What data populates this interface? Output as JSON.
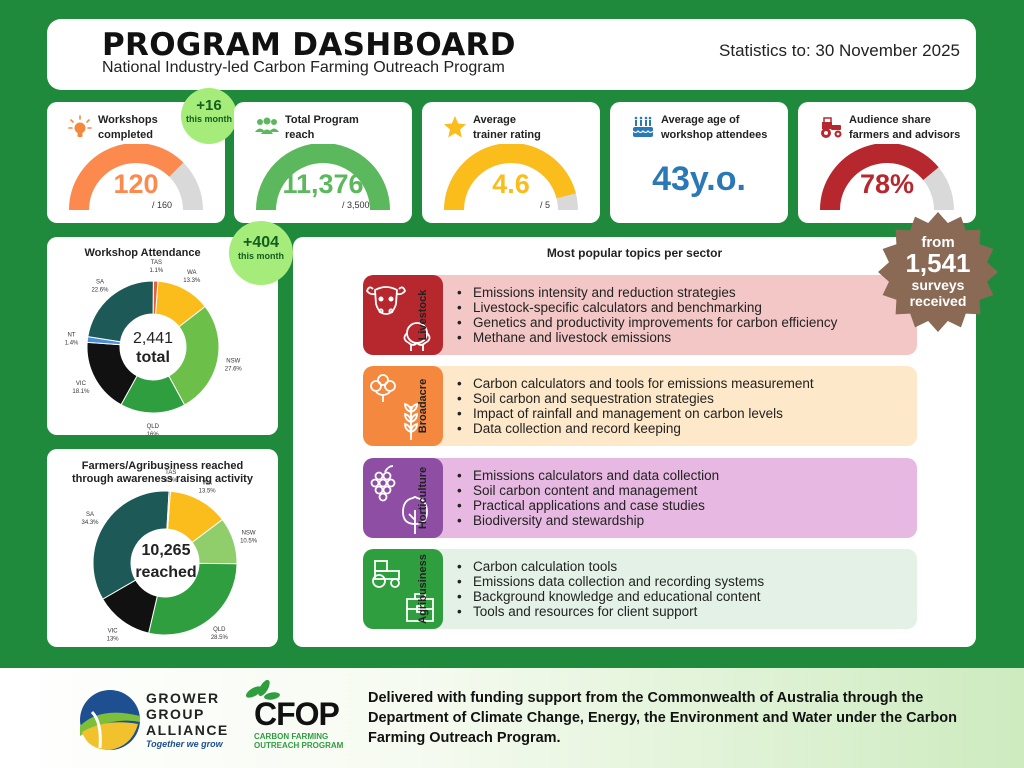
{
  "header": {
    "title": "PROGRAM DASHBOARD",
    "subtitle": "National Industry-led Carbon Farming Outreach Program",
    "stats_date": "Statistics to: 30 November 2025"
  },
  "kpis": {
    "workshops": {
      "label_line1": "Workshops",
      "label_line2": "completed",
      "value": "120",
      "max": "/ 160",
      "fraction": 0.75,
      "color": "#fc8a4f",
      "badge_value": "+16",
      "badge_text": "this month"
    },
    "reach": {
      "label_line1": "Total Program",
      "label_line2": "reach",
      "value": "11,376",
      "max": "/ 3,500",
      "fraction": 1.0,
      "color": "#5cb85c"
    },
    "rating": {
      "label_line1": "Average",
      "label_line2": "trainer rating",
      "value": "4.6",
      "max": "/ 5",
      "fraction": 0.92,
      "color": "#fbbd1c"
    },
    "age": {
      "label_line1": "Average age of",
      "label_line2": "workshop attendees",
      "value": "43y.o.",
      "color": "#2a79b6"
    },
    "audience": {
      "label_line1": "Audience share",
      "label_line2": "farmers and advisors",
      "value": "78%",
      "fraction": 0.78,
      "color": "#b7282e"
    }
  },
  "attendance": {
    "title": "Workshop Attendance",
    "badge_value": "+404",
    "badge_text": "this month",
    "center_value": "2,441",
    "center_label": "total"
  },
  "awareness": {
    "title_line1": "Farmers/Agribusiness reached",
    "title_line2": "through awareness raising activity",
    "center_value": "10,265",
    "center_label": "reached"
  },
  "chart_data": [
    {
      "type": "pie",
      "title": "Workshop Attendance",
      "categories": [
        "WA",
        "NSW",
        "QLD",
        "VIC",
        "NT",
        "SA",
        "TAS"
      ],
      "values": [
        13.3,
        27.6,
        16,
        18.1,
        1.4,
        22.6,
        1.1
      ],
      "labels": [
        "13.3%",
        "27.6%",
        "16%",
        "18.1%",
        "1.4%",
        "22.6%",
        "1.1%"
      ],
      "colors": [
        "#fbbd1c",
        "#6cc04a",
        "#2e9e3e",
        "#111111",
        "#4a90d9",
        "#1d5a57",
        "#e8603c"
      ]
    },
    {
      "type": "pie",
      "title": "Farmers/Agribusiness reached through awareness raising activity",
      "categories": [
        "WA",
        "NSW",
        "QLD",
        "VIC",
        "SA",
        "TAS"
      ],
      "values": [
        13.5,
        10.5,
        28.5,
        13,
        34.3,
        0.3
      ],
      "labels": [
        "13.5%",
        "10.5%",
        "28.5%",
        "13%",
        "34.3%",
        "0.3%"
      ],
      "colors": [
        "#fbbd1c",
        "#8fce6a",
        "#2e9e3e",
        "#111111",
        "#1d5a57",
        "#e8603c"
      ]
    }
  ],
  "topics": {
    "title": "Most popular topics per sector",
    "survey_badge": {
      "line1": "from",
      "value": "1,541",
      "line2": "surveys",
      "line3": "received"
    },
    "sectors": [
      {
        "name": "Livestock",
        "icon_color": "#b7282e",
        "bg": "#f4c7c7",
        "items": [
          "Emissions intensity and reduction strategies",
          "Livestock-specific calculators and benchmarking",
          "Genetics and productivity improvements for carbon efficiency",
          "Methane and livestock emissions"
        ]
      },
      {
        "name": "Broadacre",
        "icon_color": "#f5883f",
        "bg": "#fde8c9",
        "items": [
          "Carbon calculators and tools for emissions measurement",
          "Soil carbon and sequestration strategies",
          "Impact of rainfall and management on carbon levels",
          "Data collection and record keeping"
        ]
      },
      {
        "name": "Horticulture",
        "icon_color": "#8e4ea4",
        "bg": "#e7b9e2",
        "items": [
          "Emissions calculators and data collection",
          "Soil carbon content and management",
          "Practical applications and case studies",
          "Biodiversity and stewardship"
        ]
      },
      {
        "name": "Agribusiness",
        "icon_color": "#2e9e3e",
        "bg": "#e3f1e6",
        "items": [
          "Carbon calculation tools",
          "Emissions data collection and recording systems",
          "Background knowledge and educational content",
          "Tools and resources for client support"
        ]
      }
    ]
  },
  "footer": {
    "gga_line1": "GROWER",
    "gga_line2": "GROUP",
    "gga_line3": "ALLIANCE",
    "gga_tagline": "Together we grow",
    "cfop_name": "CFOP",
    "cfop_line1": "CARBON FARMING",
    "cfop_line2": "OUTREACH PROGRAM",
    "funding": "Delivered with funding support from the Commonwealth of Australia through the Department of Climate Change, Energy, the Environment and Water under the Carbon Farming Outreach Program."
  }
}
